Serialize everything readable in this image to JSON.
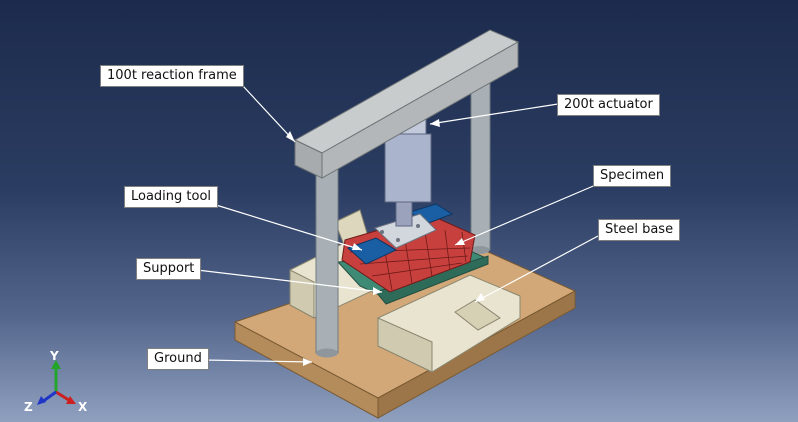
{
  "labels": {
    "reaction_frame": "100t reaction frame",
    "actuator": "200t actuator",
    "loading_tool": "Loading tool",
    "specimen": "Specimen",
    "steel_base": "Steel base",
    "support": "Support",
    "ground": "Ground"
  },
  "triad": {
    "y": "Y",
    "z": "Z",
    "x": "X"
  },
  "colors": {
    "ground": "#d3a878",
    "frame": "#b9bcbd",
    "column": "#a9b0b5",
    "actuator": "#aab4cc",
    "specimen": "#c8403d",
    "steel_base": "#3f8a74",
    "loading_tool": "#1a5fa3",
    "support": "#e8e4cf",
    "triad_x": "#cc1f1f",
    "triad_y": "#22a52a",
    "triad_z": "#1f35c8"
  }
}
